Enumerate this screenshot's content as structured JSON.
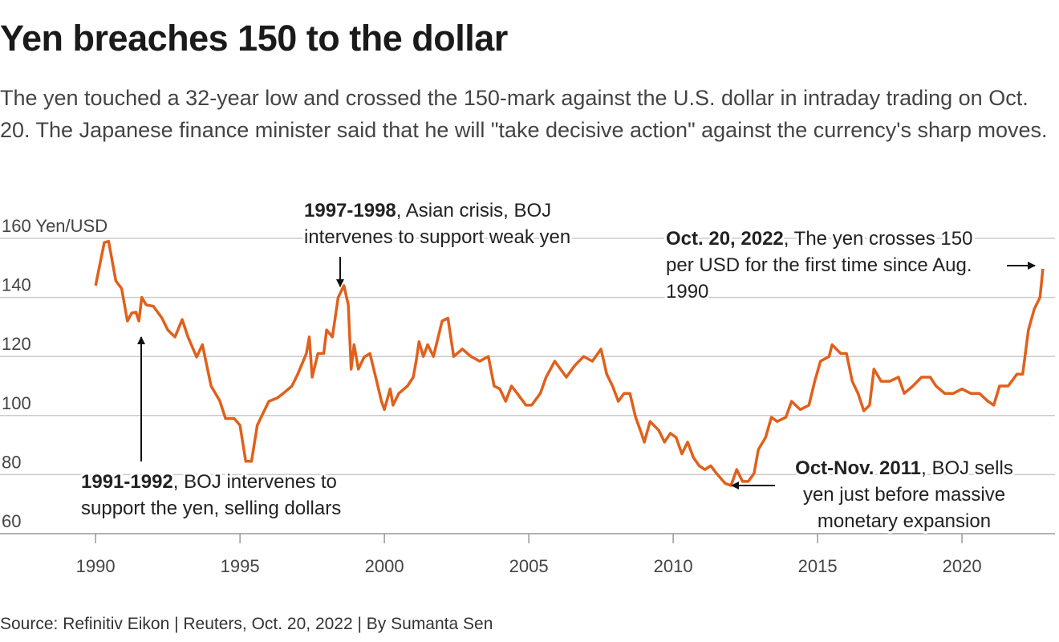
{
  "chart_data": {
    "type": "line",
    "title": "Yen breaches 150 to the dollar",
    "subtitle": "The yen touched a 32-year low and crossed the 150-mark against the U.S. dollar in intraday trading on Oct. 20. The Japanese finance minister said that he will \"take decisive action\" against the currency's sharp moves.",
    "source": "Source: Refinitiv Eikon | Reuters, Oct. 20, 2022 | By Sumanta Sen",
    "x": [
      1990.0,
      1990.3,
      1990.45,
      1990.7,
      1990.9,
      1991.1,
      1991.25,
      1991.4,
      1991.5,
      1991.6,
      1991.75,
      1992.0,
      1992.3,
      1992.5,
      1992.75,
      1993.0,
      1993.2,
      1993.5,
      1993.7,
      1994.0,
      1994.3,
      1994.5,
      1994.8,
      1995.0,
      1995.2,
      1995.4,
      1995.6,
      1995.8,
      1996.0,
      1996.3,
      1996.5,
      1996.8,
      1997.0,
      1997.3,
      1997.4,
      1997.5,
      1997.7,
      1997.9,
      1998.0,
      1998.2,
      1998.4,
      1998.6,
      1998.75,
      1998.85,
      1998.95,
      1999.1,
      1999.3,
      1999.5,
      1999.7,
      1999.9,
      2000.0,
      2000.2,
      2000.3,
      2000.5,
      2000.8,
      2001.0,
      2001.1,
      2001.2,
      2001.35,
      2001.5,
      2001.7,
      2002.0,
      2002.2,
      2002.4,
      2002.7,
      2003.0,
      2003.3,
      2003.6,
      2003.8,
      2004.0,
      2004.2,
      2004.4,
      2004.6,
      2004.9,
      2005.1,
      2005.4,
      2005.6,
      2005.9,
      2006.1,
      2006.3,
      2006.6,
      2006.9,
      2007.2,
      2007.5,
      2007.7,
      2007.9,
      2008.1,
      2008.3,
      2008.5,
      2008.7,
      2008.9,
      2009.0,
      2009.2,
      2009.5,
      2009.7,
      2009.9,
      2010.1,
      2010.3,
      2010.5,
      2010.7,
      2010.9,
      2011.1,
      2011.3,
      2011.5,
      2011.8,
      2012.0,
      2012.2,
      2012.4,
      2012.6,
      2012.8,
      2012.95,
      2013.2,
      2013.4,
      2013.6,
      2013.9,
      2014.1,
      2014.4,
      2014.7,
      2014.9,
      2015.1,
      2015.4,
      2015.5,
      2015.8,
      2016.0,
      2016.2,
      2016.4,
      2016.6,
      2016.8,
      2016.95,
      2017.2,
      2017.5,
      2017.8,
      2018.0,
      2018.3,
      2018.6,
      2018.9,
      2019.1,
      2019.4,
      2019.7,
      2020.0,
      2020.3,
      2020.6,
      2020.9,
      2021.1,
      2021.3,
      2021.6,
      2021.9,
      2022.1,
      2022.3,
      2022.5,
      2022.7,
      2022.8
    ],
    "series": [
      {
        "color": "#e0601c",
        "values": [
          144,
          158.6,
          159,
          145.6,
          143,
          132,
          134.7,
          135,
          132,
          140,
          137.5,
          137,
          133,
          129,
          126.6,
          132.5,
          126.6,
          119.8,
          124,
          110,
          105,
          99,
          99,
          96.7,
          84.5,
          84.5,
          96.7,
          100.8,
          104.8,
          106,
          107.5,
          110,
          114,
          121,
          126.6,
          113,
          121,
          121,
          129,
          126.6,
          140,
          144,
          137.5,
          115.7,
          124,
          115.7,
          119.8,
          121,
          113,
          104.8,
          102,
          109,
          103.5,
          107.5,
          110,
          113,
          118.4,
          125,
          120,
          124,
          120,
          132,
          133,
          120,
          122.5,
          120,
          118.4,
          120,
          110,
          109,
          104.8,
          110,
          107.5,
          103.5,
          103.5,
          107.5,
          113,
          118.4,
          115.7,
          113,
          117,
          120,
          118.4,
          122.5,
          114,
          110,
          104.8,
          107.5,
          107.5,
          99.4,
          94,
          91,
          98,
          95,
          91,
          94,
          92.6,
          87,
          91,
          85.8,
          83,
          81.7,
          83,
          80.4,
          77,
          76.3,
          81.7,
          77.7,
          77.7,
          80.4,
          88.5,
          92.6,
          99.4,
          98,
          99.4,
          104.8,
          102,
          103.5,
          111.6,
          118.4,
          120,
          124,
          121,
          121,
          111.6,
          107.5,
          101.6,
          103.5,
          115.7,
          111.6,
          111.6,
          113,
          107.5,
          110,
          113,
          113,
          110,
          107.5,
          107.5,
          109,
          107.5,
          107.5,
          104.8,
          103.5,
          110,
          110,
          114,
          114,
          129,
          136,
          140,
          149.7
        ]
      }
    ],
    "xlim": [
      1986.69,
      2023.22
    ],
    "ylim": [
      60,
      160
    ],
    "xticks": [
      1990,
      1995,
      2000,
      2005,
      2010,
      2015,
      2020
    ],
    "yticks": [
      60,
      80,
      100,
      120,
      140,
      {
        "value": 160,
        "label": "160 Yen/USD"
      }
    ],
    "grid": true,
    "annotations": [
      {
        "bold": "1991-1992",
        "lines": [
          ", BOJ intervenes to",
          "support the yen, selling dollars"
        ]
      },
      {
        "bold": "1997-1998",
        "lines": [
          ", Asian crisis, BOJ",
          "intervenes to support weak yen"
        ]
      },
      {
        "bold": "Oct. 20, 2022",
        "lines": [
          ", The yen crosses 150",
          "per USD for the first time since Aug.",
          "1990"
        ]
      },
      {
        "bold": "Oct-Nov. 2011",
        "lines": [
          ", BOJ sells",
          "yen just before massive",
          "monetary expansion"
        ]
      }
    ]
  }
}
